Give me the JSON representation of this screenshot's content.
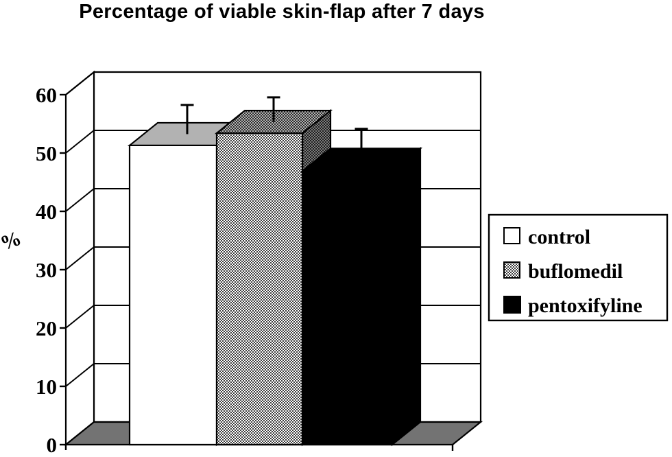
{
  "title": "Percentage of viable skin-flap after 7 days",
  "axis": {
    "ylabel": "%",
    "yticks": [
      0,
      10,
      20,
      30,
      40,
      50,
      60
    ]
  },
  "legend": {
    "items": [
      {
        "label": "control",
        "swatch": "white"
      },
      {
        "label": "buflomedil",
        "swatch": "dotted-pattern"
      },
      {
        "label": "pentoxifyline",
        "swatch": "black"
      }
    ]
  },
  "chart_data": {
    "type": "bar",
    "style": "3d-column-with-upper-error-bars",
    "title": "Percentage of viable skin-flap after 7 days",
    "categories": [
      "control",
      "buflomedil",
      "pentoxifyline"
    ],
    "values": [
      51.3,
      53.4,
      46.9
    ],
    "errors_upper": [
      5.0,
      4.2,
      5.3
    ],
    "xlabel": "",
    "ylabel": "%",
    "ylim": [
      0,
      60
    ],
    "ytick_step": 10,
    "grid": true,
    "legend_position": "right",
    "series_fills": [
      "white",
      "dotted-pattern",
      "black"
    ]
  },
  "colors": {
    "line": "#000000",
    "background": "#ffffff",
    "wall": "#ffffff",
    "floor": "#737373",
    "bar_top_gray": "#b2b2b2",
    "pattern_top_base": "#b4b4b4",
    "pattern_side_base": "#7e7e7e"
  }
}
